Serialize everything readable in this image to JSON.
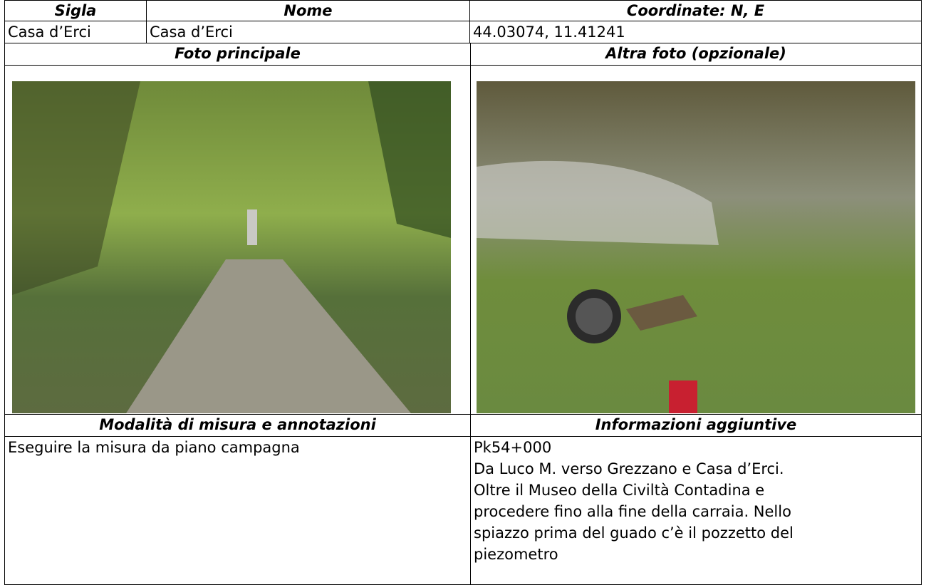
{
  "header": {
    "sigla": "Sigla",
    "nome": "Nome",
    "coordinate": "Coordinate: N, E"
  },
  "record": {
    "sigla": "Casa d’Erci",
    "nome": "Casa d’Erci",
    "coordinate": "44.03074, 11.41241"
  },
  "photos": {
    "main": "Foto principale",
    "other": "Altra foto (opzionale)"
  },
  "notes": {
    "measure_title": "Modalità di misura e annotazioni",
    "info_title": "Informazioni aggiuntive",
    "measure": "Eseguire la misura da piano campagna",
    "info": [
      "Pk54+000",
      "Da Luco M. verso Grezzano e Casa d’Erci.",
      "Oltre il Museo della Civiltà Contadina e",
      "procedere fino alla fine della carraia. Nello",
      "spiazzo prima del guado c’è il pozzetto del",
      "piezometro"
    ]
  }
}
